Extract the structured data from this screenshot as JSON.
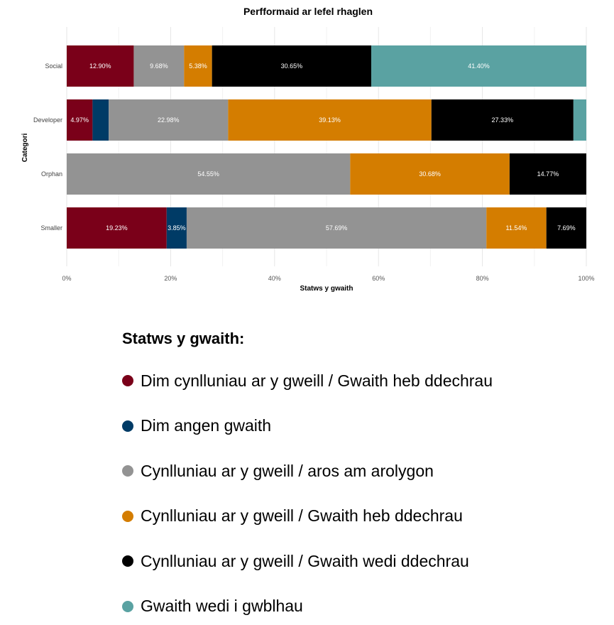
{
  "chart_data": {
    "type": "bar",
    "orientation": "horizontal",
    "stacked": "percent",
    "title": "Perfformaid ar lefel rhaglen",
    "xlabel": "Statws y gwaith",
    "ylabel": "Categori",
    "xlim": [
      0,
      100
    ],
    "xticks": [
      "0%",
      "20%",
      "40%",
      "60%",
      "80%",
      "100%"
    ],
    "grid": true,
    "categories": [
      "Social",
      "Developer",
      "Orphan",
      "Smaller"
    ],
    "series": [
      {
        "name": "Dim cynlluniau ar y gweill / Gwaith heb ddechrau",
        "color": "#7a0019",
        "values": [
          12.9,
          4.97,
          0,
          19.23
        ],
        "labels": [
          "12.90%",
          "4.97%",
          "",
          "19.23%"
        ]
      },
      {
        "name": "Dim angen gwaith",
        "color": "#003b66",
        "values": [
          0,
          3.11,
          0,
          3.85
        ],
        "labels": [
          "",
          "",
          "",
          "3.85%"
        ]
      },
      {
        "name": "Cynlluniau ar y gweill / aros am arolygon",
        "color": "#939393",
        "values": [
          9.68,
          22.98,
          54.55,
          57.69
        ],
        "labels": [
          "9.68%",
          "22.98%",
          "54.55%",
          "57.69%"
        ]
      },
      {
        "name": "Cynlluniau ar y gweill / Gwaith heb ddechrau",
        "color": "#d47d00",
        "values": [
          5.38,
          39.13,
          30.68,
          11.54
        ],
        "labels": [
          "5.38%",
          "39.13%",
          "30.68%",
          "11.54%"
        ]
      },
      {
        "name": "Cynlluniau ar y gweill / Gwaith wedi ddechrau",
        "color": "#000000",
        "values": [
          30.65,
          27.33,
          14.77,
          7.69
        ],
        "labels": [
          "30.65%",
          "27.33%",
          "14.77%",
          "7.69%"
        ]
      },
      {
        "name": "Gwaith wedi i gwblhau",
        "color": "#5aa2a2",
        "values": [
          41.4,
          2.48,
          0,
          0
        ],
        "labels": [
          "41.40%",
          "",
          "",
          ""
        ]
      }
    ]
  },
  "legend": {
    "title": "Statws y gwaith:",
    "items": [
      {
        "label": "Dim cynlluniau ar y gweill / Gwaith heb ddechrau",
        "color": "#7a0019"
      },
      {
        "label": "Dim angen gwaith",
        "color": "#003b66"
      },
      {
        "label": "Cynlluniau ar y gweill / aros am arolygon",
        "color": "#939393"
      },
      {
        "label": "Cynlluniau ar y gweill / Gwaith heb ddechrau",
        "color": "#d47d00"
      },
      {
        "label": "Cynlluniau ar y gweill / Gwaith wedi ddechrau",
        "color": "#000000"
      },
      {
        "label": "Gwaith wedi i gwblhau",
        "color": "#5aa2a2"
      }
    ]
  }
}
